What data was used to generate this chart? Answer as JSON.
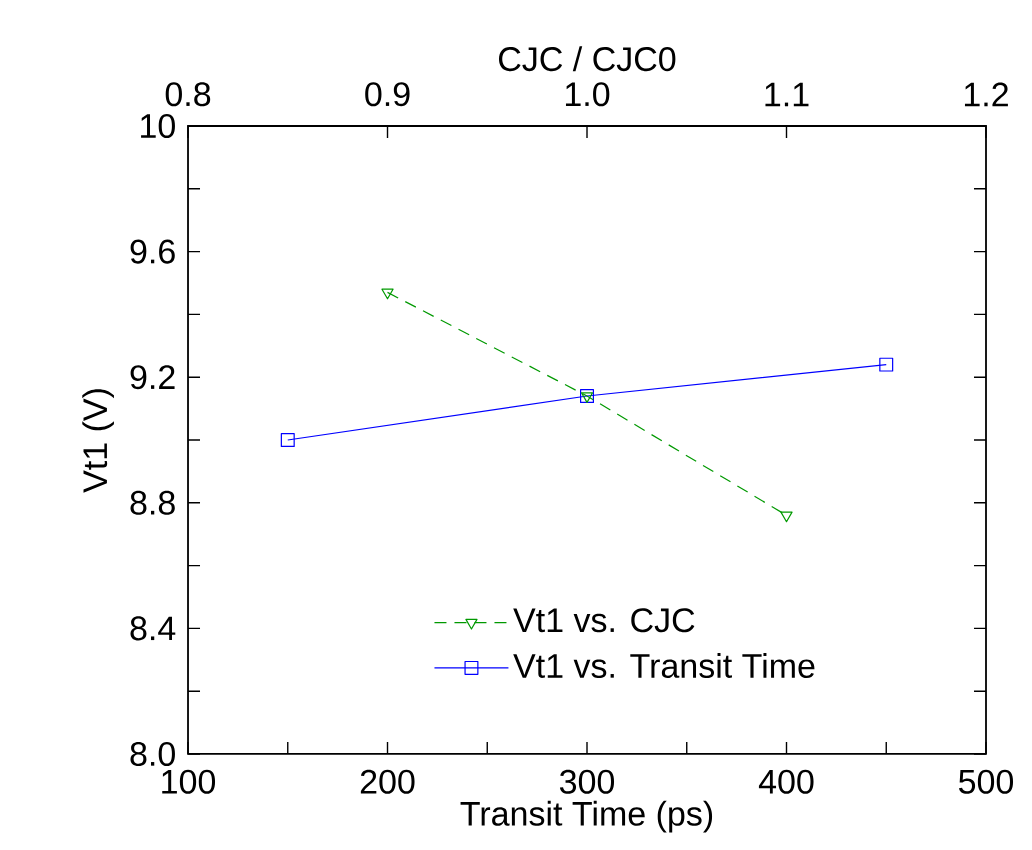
{
  "chart_data": {
    "type": "line",
    "xlabel": "Transit Time (ps)",
    "ylabel": "Vt1 (V)",
    "x2label": "CJC  / CJC0",
    "xlim": [
      100,
      500
    ],
    "xticks": [
      100,
      {
        "value": 150,
        "label": null
      },
      200,
      {
        "value": 250,
        "label": null
      },
      300,
      {
        "value": 350,
        "label": null
      },
      400,
      {
        "value": 450,
        "label": null
      },
      500
    ],
    "x2lim": [
      0.8,
      1.2
    ],
    "x2ticks": [
      0.8,
      0.9,
      {
        "value": 1.0,
        "label": "1.0"
      },
      1.1,
      1.2
    ],
    "ylim": [
      8,
      10
    ],
    "yticks": [
      {
        "value": 8,
        "label": "8.0"
      },
      {
        "value": 8.2,
        "label": null
      },
      8.4,
      {
        "value": 8.6,
        "label": null
      },
      8.8,
      {
        "value": 9.0,
        "label": null
      },
      9.2,
      {
        "value": 9.4,
        "label": null
      },
      9.6,
      {
        "value": 9.8,
        "label": null
      },
      10
    ],
    "legend": "bottom",
    "series": [
      {
        "name": "Vt1 vs. CJC",
        "color": "#009900",
        "axis": "x2",
        "marker": "triangle",
        "line_style": "dashed",
        "x": [
          0.9,
          1.0,
          1.1
        ],
        "values": [
          9.47,
          9.14,
          8.76
        ]
      },
      {
        "name": "Vt1 vs. Transit Time",
        "color": "#0000ff",
        "marker": "square",
        "line_style": "solid",
        "x": [
          150,
          300,
          450
        ],
        "values": [
          9.0,
          9.14,
          9.24
        ]
      }
    ]
  }
}
